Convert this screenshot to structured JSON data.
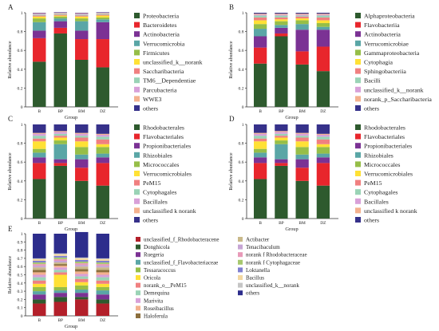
{
  "panels": [
    {
      "id": "A",
      "letter": "A",
      "ylabel": "Relative abundance",
      "xlabel": "Group",
      "yticks": [
        "0",
        "0.2",
        "0.4",
        "0.6",
        "0.8",
        "1"
      ],
      "chart_data": {
        "type": "bar",
        "stacked": true,
        "categories": [
          "B",
          "BP",
          "BM",
          "DZ"
        ],
        "ylim": [
          0,
          1
        ],
        "legend": "right",
        "series": [
          {
            "name": "Proteobacteria",
            "color": "#2e5a2e",
            "values": [
              0.48,
              0.78,
              0.5,
              0.42
            ]
          },
          {
            "name": "Bacteroidetes",
            "color": "#e8262c",
            "values": [
              0.25,
              0.06,
              0.22,
              0.3
            ]
          },
          {
            "name": "Actinobacteria",
            "color": "#7b3294",
            "values": [
              0.08,
              0.07,
              0.09,
              0.18
            ]
          },
          {
            "name": "Verrucomicrobia",
            "color": "#5aa6a6",
            "values": [
              0.09,
              0.03,
              0.1,
              0.03
            ]
          },
          {
            "name": "Firmicutes",
            "color": "#96be48",
            "values": [
              0.04,
              0.02,
              0.03,
              0.02
            ]
          },
          {
            "name": "unclassified_k__norank",
            "color": "#ffe135",
            "values": [
              0.02,
              0.01,
              0.02,
              0.02
            ]
          },
          {
            "name": "Saccharibacteria",
            "color": "#f08080",
            "values": [
              0.01,
              0.01,
              0.01,
              0.01
            ]
          },
          {
            "name": "TM6__Dependentiae",
            "color": "#9ad3b6",
            "values": [
              0.01,
              0.01,
              0.01,
              0.01
            ]
          },
          {
            "name": "Parcubacteria",
            "color": "#d8a0d8",
            "values": [
              0.01,
              0.005,
              0.01,
              0.005
            ]
          },
          {
            "name": "WWE3",
            "color": "#f4b18e",
            "values": [
              0.005,
              0.005,
              0.005,
              0.005
            ]
          },
          {
            "name": "others",
            "color": "#36318a",
            "values": [
              0.005,
              0.005,
              0.005,
              0.005
            ]
          }
        ]
      }
    },
    {
      "id": "B",
      "letter": "B",
      "ylabel": "Relative abundance",
      "xlabel": "Group",
      "yticks": [
        "0",
        "0.2",
        "0.4",
        "0.6",
        "0.8",
        "1"
      ],
      "chart_data": {
        "type": "bar",
        "stacked": true,
        "categories": [
          "B",
          "BP",
          "BM",
          "DZ"
        ],
        "ylim": [
          0,
          1
        ],
        "legend": "right",
        "series": [
          {
            "name": "Alphaproteobacteria",
            "color": "#2e5a2e",
            "values": [
              0.46,
              0.75,
              0.45,
              0.38
            ]
          },
          {
            "name": "Flavobacteriia",
            "color": "#e8262c",
            "values": [
              0.17,
              0.03,
              0.14,
              0.26
            ]
          },
          {
            "name": "Actinobacteria",
            "color": "#7b3294",
            "values": [
              0.12,
              0.06,
              0.23,
              0.18
            ]
          },
          {
            "name": "Verrucomicrobiae",
            "color": "#5aa6a6",
            "values": [
              0.08,
              0.03,
              0.06,
              0.03
            ]
          },
          {
            "name": "Gammaproteobacteria",
            "color": "#96be48",
            "values": [
              0.05,
              0.04,
              0.04,
              0.04
            ]
          },
          {
            "name": "Cytophagia",
            "color": "#ffe135",
            "values": [
              0.04,
              0.02,
              0.02,
              0.03
            ]
          },
          {
            "name": "Sphingobacteriia",
            "color": "#f08080",
            "values": [
              0.03,
              0.02,
              0.02,
              0.03
            ]
          },
          {
            "name": "Bacilli",
            "color": "#9ad3b6",
            "values": [
              0.02,
              0.02,
              0.01,
              0.02
            ]
          },
          {
            "name": "unclassified_k__norank",
            "color": "#d8a0d8",
            "values": [
              0.01,
              0.01,
              0.01,
              0.01
            ]
          },
          {
            "name": "norank_p_Saccharibacteria",
            "color": "#f4b18e",
            "values": [
              0.01,
              0.01,
              0.01,
              0.01
            ]
          },
          {
            "name": "others",
            "color": "#36318a",
            "values": [
              0.01,
              0.01,
              0.01,
              0.01
            ]
          }
        ]
      }
    },
    {
      "id": "C",
      "letter": "C",
      "ylabel": "Relative abundance",
      "xlabel": "Group",
      "yticks": [
        "0",
        "0.2",
        "0.4",
        "0.6",
        "0.8",
        "1"
      ],
      "chart_data": {
        "type": "bar",
        "stacked": true,
        "categories": [
          "B",
          "BP",
          "BM",
          "DZ"
        ],
        "ylim": [
          0,
          1
        ],
        "legend": "right",
        "series": [
          {
            "name": "Rhodobacterales",
            "color": "#2e5a2e",
            "values": [
              0.42,
              0.56,
              0.4,
              0.35
            ]
          },
          {
            "name": "Flavobacteriales",
            "color": "#e8262c",
            "values": [
              0.17,
              0.03,
              0.14,
              0.24
            ]
          },
          {
            "name": "Propionibacteriales",
            "color": "#7b3294",
            "values": [
              0.06,
              0.04,
              0.09,
              0.06
            ]
          },
          {
            "name": "Rhizobiales",
            "color": "#5aa6a6",
            "values": [
              0.05,
              0.16,
              0.05,
              0.04
            ]
          },
          {
            "name": "Micrococcales",
            "color": "#96be48",
            "values": [
              0.04,
              0.04,
              0.08,
              0.07
            ]
          },
          {
            "name": "Verrucomicrobiales",
            "color": "#ffe135",
            "values": [
              0.08,
              0.03,
              0.06,
              0.03
            ]
          },
          {
            "name": "PeM15",
            "color": "#f08080",
            "values": [
              0.03,
              0.02,
              0.04,
              0.05
            ]
          },
          {
            "name": "Cytophagales",
            "color": "#9ad3b6",
            "values": [
              0.03,
              0.02,
              0.02,
              0.03
            ]
          },
          {
            "name": "Bacillales",
            "color": "#d8a0d8",
            "values": [
              0.02,
              0.02,
              0.02,
              0.02
            ]
          },
          {
            "name": "unclassified k norank",
            "color": "#f4b18e",
            "values": [
              0.01,
              0.01,
              0.01,
              0.01
            ]
          },
          {
            "name": "others",
            "color": "#36318a",
            "values": [
              0.09,
              0.07,
              0.09,
              0.1
            ]
          }
        ]
      }
    },
    {
      "id": "D",
      "letter": "D",
      "ylabel": "Relative abundance",
      "xlabel": "Group",
      "yticks": [
        "0",
        "0.2",
        "0.4",
        "0.6",
        "0.8",
        "1"
      ],
      "chart_data": {
        "type": "bar",
        "stacked": true,
        "categories": [
          "B",
          "BP",
          "BM",
          "DZ"
        ],
        "ylim": [
          0,
          1
        ],
        "legend": "right",
        "series": [
          {
            "name": "Rhodobacterales",
            "color": "#2e5a2e",
            "values": [
              0.42,
              0.56,
              0.4,
              0.35
            ]
          },
          {
            "name": "Flavobacteriales",
            "color": "#e8262c",
            "values": [
              0.17,
              0.03,
              0.14,
              0.24
            ]
          },
          {
            "name": "Propionibacteriales",
            "color": "#7b3294",
            "values": [
              0.06,
              0.04,
              0.09,
              0.06
            ]
          },
          {
            "name": "Rhizobiales",
            "color": "#5aa6a6",
            "values": [
              0.05,
              0.16,
              0.05,
              0.04
            ]
          },
          {
            "name": "Micrococcales",
            "color": "#96be48",
            "values": [
              0.04,
              0.04,
              0.08,
              0.07
            ]
          },
          {
            "name": "Verrucomicrobiales",
            "color": "#ffe135",
            "values": [
              0.08,
              0.03,
              0.06,
              0.03
            ]
          },
          {
            "name": "PeM15",
            "color": "#f08080",
            "values": [
              0.03,
              0.02,
              0.04,
              0.05
            ]
          },
          {
            "name": "Cytophagales",
            "color": "#9ad3b6",
            "values": [
              0.03,
              0.02,
              0.02,
              0.03
            ]
          },
          {
            "name": "Bacillales",
            "color": "#d8a0d8",
            "values": [
              0.02,
              0.02,
              0.02,
              0.02
            ]
          },
          {
            "name": "unclassified k norank",
            "color": "#f4b18e",
            "values": [
              0.01,
              0.01,
              0.01,
              0.01
            ]
          },
          {
            "name": "others",
            "color": "#36318a",
            "values": [
              0.09,
              0.07,
              0.09,
              0.1
            ]
          }
        ]
      }
    },
    {
      "id": "E",
      "letter": "E",
      "ylabel": "Relative abundance",
      "xlabel": "Group",
      "yticks": [
        "0",
        "0.1",
        "0.2",
        "0.3",
        "0.4",
        "0.5",
        "0.6",
        "0.7",
        "0.8",
        "0.9",
        "1"
      ],
      "chart_data": {
        "type": "bar",
        "stacked": true,
        "categories": [
          "B",
          "BP",
          "BM",
          "DZ"
        ],
        "ylim": [
          0,
          1
        ],
        "legend": "right",
        "series": [
          {
            "name": "unclassified_f_Rhodobacteracene",
            "color": "#b3202a",
            "values": [
              0.15,
              0.17,
              0.2,
              0.15
            ]
          },
          {
            "name": "Donghicola",
            "color": "#2e5a2e",
            "values": [
              0.05,
              0.06,
              0.03,
              0.05
            ]
          },
          {
            "name": "Ruegeria",
            "color": "#7b3294",
            "values": [
              0.06,
              0.05,
              0.05,
              0.06
            ]
          },
          {
            "name": "unclassified_f_Flavobacteriaceae",
            "color": "#5aa6a6",
            "values": [
              0.04,
              0.03,
              0.04,
              0.05
            ]
          },
          {
            "name": "Tessaracoccus",
            "color": "#96be48",
            "values": [
              0.05,
              0.04,
              0.05,
              0.04
            ]
          },
          {
            "name": "Oricola",
            "color": "#ffe135",
            "values": [
              0.04,
              0.15,
              0.04,
              0.04
            ]
          },
          {
            "name": "norank_o__PeM15",
            "color": "#f08080",
            "values": [
              0.04,
              0.03,
              0.04,
              0.04
            ]
          },
          {
            "name": "Demequina",
            "color": "#9ad3b6",
            "values": [
              0.04,
              0.03,
              0.03,
              0.04
            ]
          },
          {
            "name": "Marivita",
            "color": "#d8a0d8",
            "values": [
              0.03,
              0.03,
              0.03,
              0.03
            ]
          },
          {
            "name": "Roseibacillus",
            "color": "#f4b18e",
            "values": [
              0.03,
              0.02,
              0.03,
              0.03
            ]
          },
          {
            "name": "Haloferula",
            "color": "#8c6f3d",
            "values": [
              0.03,
              0.02,
              0.03,
              0.03
            ]
          },
          {
            "name": "Actibacter",
            "color": "#c9b98a",
            "values": [
              0.03,
              0.02,
              0.03,
              0.03
            ]
          },
          {
            "name": "Tenacibaculum",
            "color": "#c6a5d4",
            "values": [
              0.02,
              0.02,
              0.02,
              0.02
            ]
          },
          {
            "name": "norank f Rhodobacteraceae",
            "color": "#e89ab8",
            "values": [
              0.02,
              0.02,
              0.02,
              0.02
            ]
          },
          {
            "name": "norank f Cytophagaceae",
            "color": "#a7c86f",
            "values": [
              0.02,
              0.02,
              0.02,
              0.02
            ]
          },
          {
            "name": "Loktanella",
            "color": "#7f7fd0",
            "values": [
              0.02,
              0.02,
              0.02,
              0.02
            ]
          },
          {
            "name": "Bacillus",
            "color": "#f3d8a1",
            "values": [
              0.02,
              0.02,
              0.02,
              0.02
            ]
          },
          {
            "name": "unclassified_k__norank",
            "color": "#c5c5c5",
            "values": [
              0.01,
              0.01,
              0.01,
              0.01
            ]
          },
          {
            "name": "others",
            "color": "#2d2d8c",
            "values": [
              0.3,
              0.24,
              0.31,
              0.3
            ]
          }
        ]
      }
    }
  ]
}
